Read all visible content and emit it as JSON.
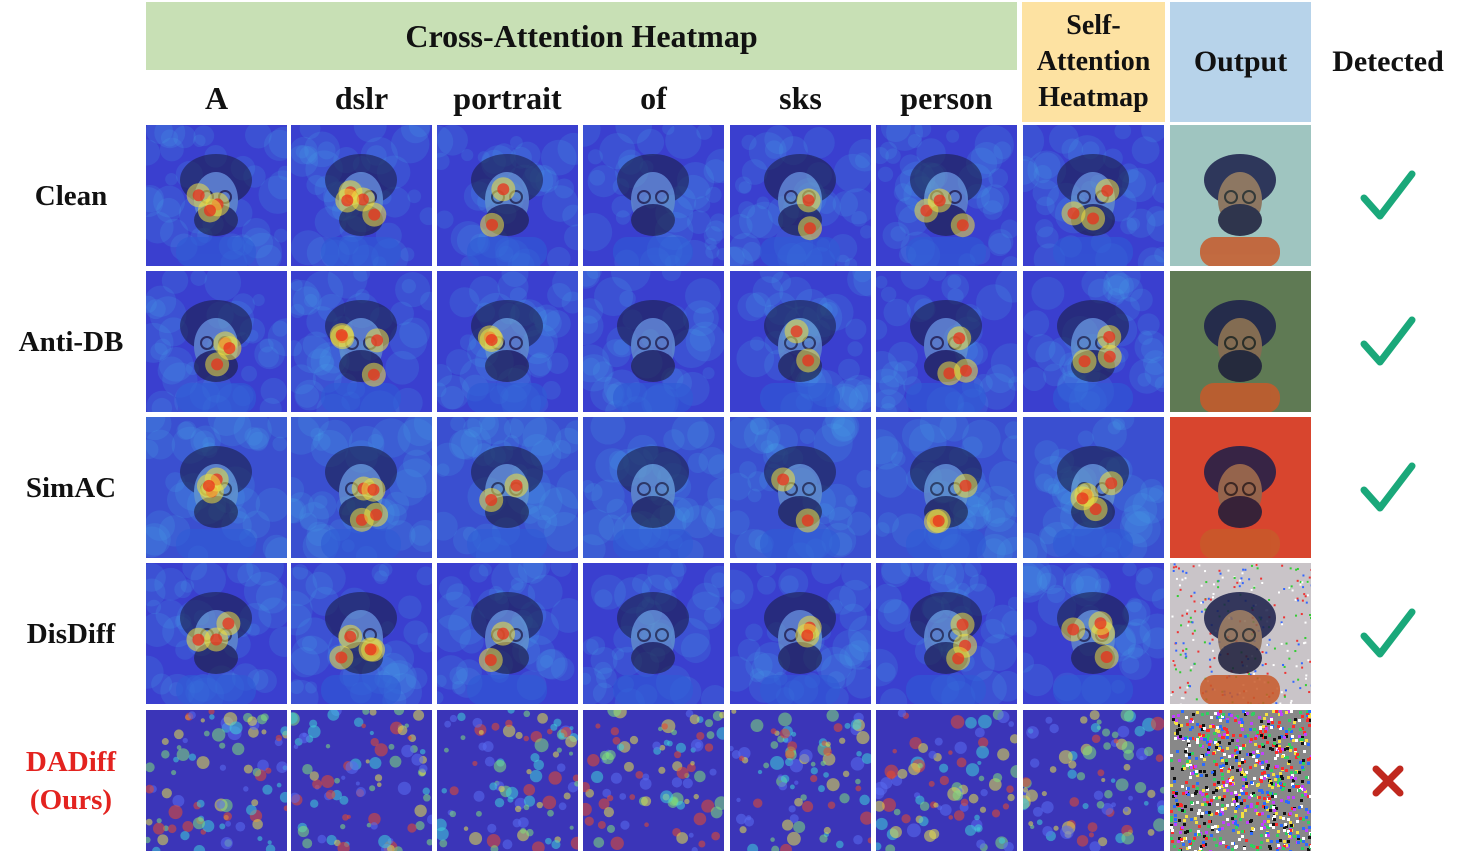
{
  "header": {
    "cross_attention": "Cross-Attention Heatmap",
    "self_attention": [
      "Self-",
      "Attention",
      "Heatmap"
    ],
    "output": "Output",
    "detected": "Detected"
  },
  "tokens": [
    "A",
    "dslr",
    "portrait",
    "of",
    "sks",
    "person"
  ],
  "rows": [
    {
      "label": [
        "Clean"
      ],
      "detected": true
    },
    {
      "label": [
        "Anti-DB"
      ],
      "detected": true
    },
    {
      "label": [
        "SimAC"
      ],
      "detected": true
    },
    {
      "label": [
        "DisDiff"
      ],
      "detected": true
    },
    {
      "label": [
        "DADiff",
        "(Ours)"
      ],
      "detected": false
    }
  ],
  "colors": {
    "cross_band": "#c8e0b5",
    "self_band": "#fde2a2",
    "output_band": "#b7d3ea",
    "check": "#1aa87a",
    "cross": "#c0281e",
    "ours_label": "#e3231f",
    "heatmap_base": "#3a3fcf"
  }
}
